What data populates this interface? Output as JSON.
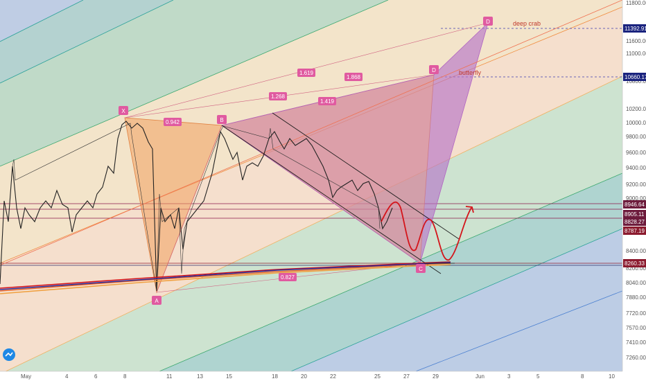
{
  "colors": {
    "background": "#f1dfd7",
    "pattern_orange": "#f0a060",
    "pattern_purple": "#c07ac8",
    "tag_pink": "#e05aa0",
    "axis_text": "#555555",
    "support_line": "#8b1a4a",
    "resistance_line": "#8b1a4a",
    "projection_red": "#d4141a",
    "logo_blue": "#1e88e5"
  },
  "chart_data": {
    "type": "candlestick",
    "title": "",
    "xlabel": "",
    "ylabel": "",
    "y_axis_ticks": [
      "11800.00",
      "11600.00",
      "11000.00",
      "10800.00",
      "10200.00",
      "10000.00",
      "9800.00",
      "9600.00",
      "9400.00",
      "9200.00",
      "9000.00",
      "8400.00",
      "8200.00",
      "8040.00",
      "7880.00",
      "7720.00",
      "7570.00",
      "7410.00",
      "7260.00"
    ],
    "x_axis_ticks": [
      "May",
      "4",
      "6",
      "8",
      "11",
      "13",
      "15",
      "18",
      "20",
      "22",
      "25",
      "27",
      "29",
      "Jun",
      "3",
      "5",
      "8",
      "10"
    ],
    "pattern_points": [
      "X",
      "A",
      "B",
      "C",
      "D",
      "D"
    ],
    "ratio_labels": [
      "0.942",
      "1.619",
      "1.868",
      "1.268",
      "1.419",
      "0.827"
    ],
    "annotations": [
      "deep crab",
      "butterfly"
    ],
    "price_tags": [
      "11392.91",
      "10660.17",
      "8946.64",
      "8905.11",
      "8828.27",
      "8787.19",
      "8260.33"
    ],
    "price_tag_colors": [
      "#1a237e",
      "#1a237e",
      "#6d1b3c",
      "#6d1b3c",
      "#6d1b3c",
      "#8b1a2e",
      "#8b1a2e"
    ]
  }
}
